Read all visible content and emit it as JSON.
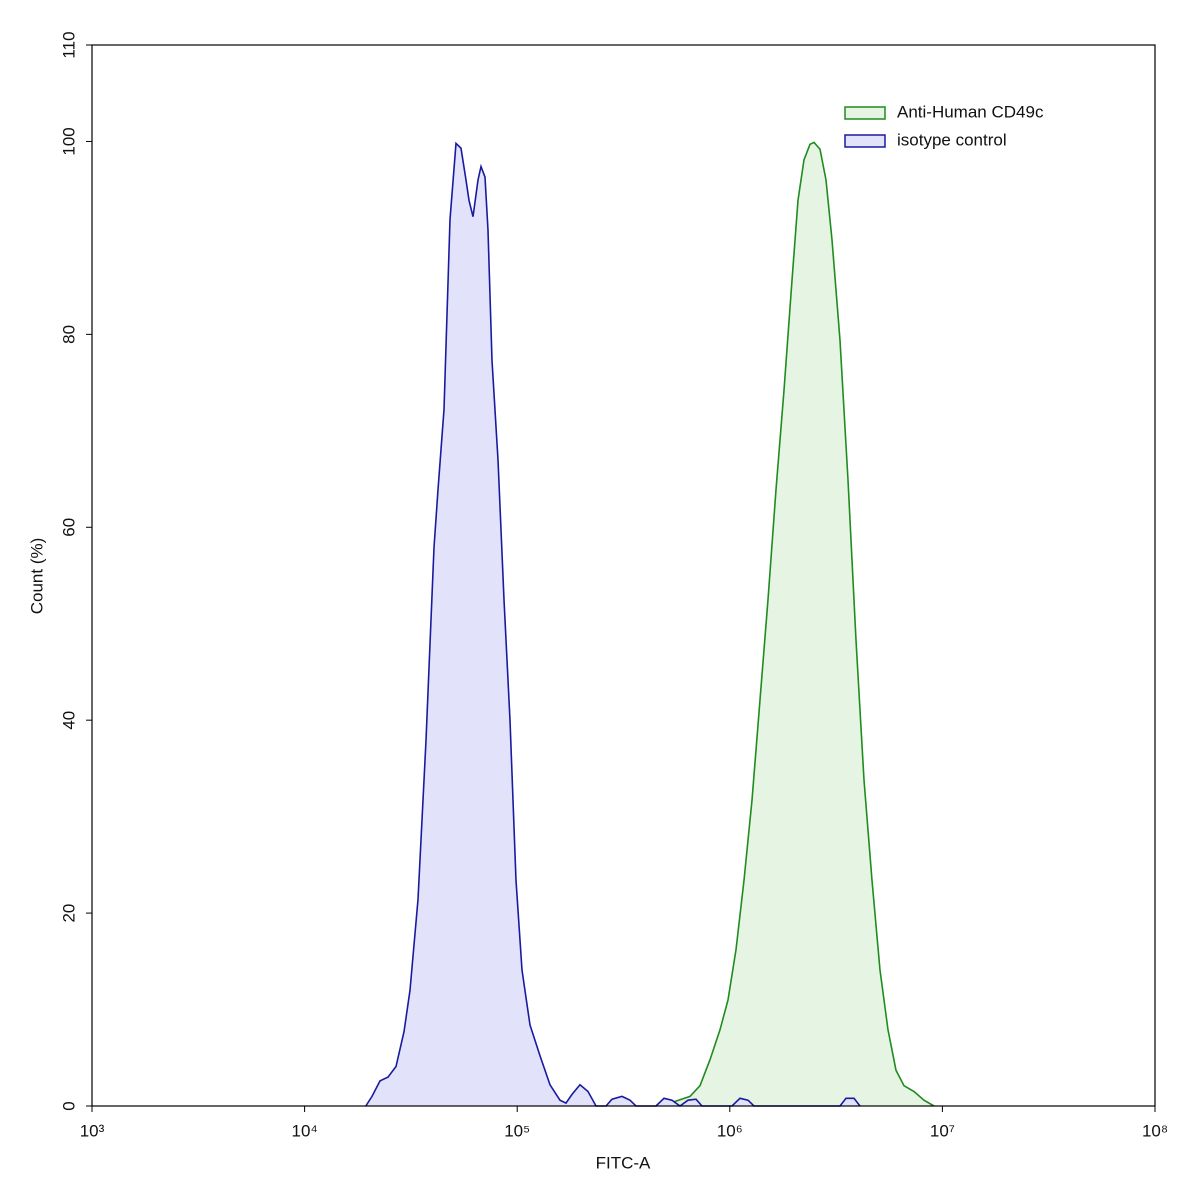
{
  "chart_data": {
    "type": "histogram-overlay",
    "x_label": "FITC-A",
    "y_label": "Count  (%)",
    "x_scale": "log",
    "xlim": [
      1000,
      100000000
    ],
    "xticks": [
      {
        "value": 1000,
        "label": "10³"
      },
      {
        "value": 10000,
        "label": "10⁴"
      },
      {
        "value": 100000,
        "label": "10⁵"
      },
      {
        "value": 1000000,
        "label": "10⁶"
      },
      {
        "value": 10000000,
        "label": "10⁷"
      },
      {
        "value": 100000000,
        "label": "10⁸"
      }
    ],
    "ylim": [
      0,
      110
    ],
    "yticks": [
      0,
      20,
      40,
      60,
      80,
      100,
      110
    ],
    "legend": "top-right",
    "series": [
      {
        "name": "Anti-Human CD49c",
        "color": "#1e8c1e",
        "fill": "#e6f4e3",
        "x": [
          449770,
          523300,
          649900,
          724200,
          806900,
          899400,
          980600,
          1069000,
          1166000,
          1272000,
          1387000,
          1512000,
          1650000,
          1798000,
          1961000,
          2094000,
          2234000,
          2384000,
          2490000,
          2657000,
          2835000,
          3025000,
          3299000,
          3597000,
          3922000,
          4277000,
          4666000,
          5088000,
          5548000,
          6049000,
          6599000,
          7352000,
          8195000,
          9131000
        ],
        "values": [
          0,
          0.3,
          1.0,
          2.1,
          4.8,
          7.9,
          11.0,
          16.2,
          23.4,
          31.7,
          42.1,
          52.5,
          63.9,
          74.2,
          85.6,
          93.9,
          98.1,
          99.7,
          99.9,
          99.2,
          96.0,
          89.8,
          79.4,
          64.9,
          48.3,
          33.8,
          23.4,
          14.1,
          7.9,
          3.7,
          2.1,
          1.5,
          0.6,
          0
        ]
      },
      {
        "name": "isotype control",
        "color": "#1a1aa0",
        "fill": "#e2e3fa",
        "x": [
          19400,
          20750,
          22620,
          24680,
          26910,
          29340,
          31310,
          34150,
          37240,
          40620,
          42420,
          45260,
          48300,
          51540,
          54400,
          57430,
          59320,
          61940,
          65400,
          67560,
          70560,
          72880,
          76110,
          81210,
          86690,
          92490,
          98720,
          105340,
          114880,
          128030,
          142650,
          158960,
          169640,
          181050,
          197420,
          215280,
          234760,
          261630,
          279210,
          311160,
          339340,
          362150,
          449770,
          490460,
          534790,
          583320,
          636050,
          693430,
          740000,
          1024000,
          1117000,
          1218000,
          1299000,
          3299000,
          3520000,
          3839000,
          4098000
        ],
        "values": [
          0,
          1.0,
          2.6,
          3.0,
          4.1,
          7.7,
          12.0,
          21.4,
          37.9,
          57.9,
          63.9,
          72.2,
          91.9,
          99.8,
          99.3,
          96.0,
          93.9,
          92.2,
          96.0,
          97.4,
          96.3,
          90.8,
          77.3,
          67.0,
          52.5,
          40.0,
          23.4,
          14.1,
          8.4,
          5.2,
          2.2,
          0.6,
          0.3,
          1.2,
          2.2,
          1.5,
          0,
          0,
          0.7,
          1.0,
          0.6,
          0,
          0,
          0.8,
          0.6,
          0,
          0.6,
          0.7,
          0,
          0,
          0.8,
          0.6,
          0,
          0,
          0.8,
          0.8,
          0
        ]
      }
    ]
  }
}
